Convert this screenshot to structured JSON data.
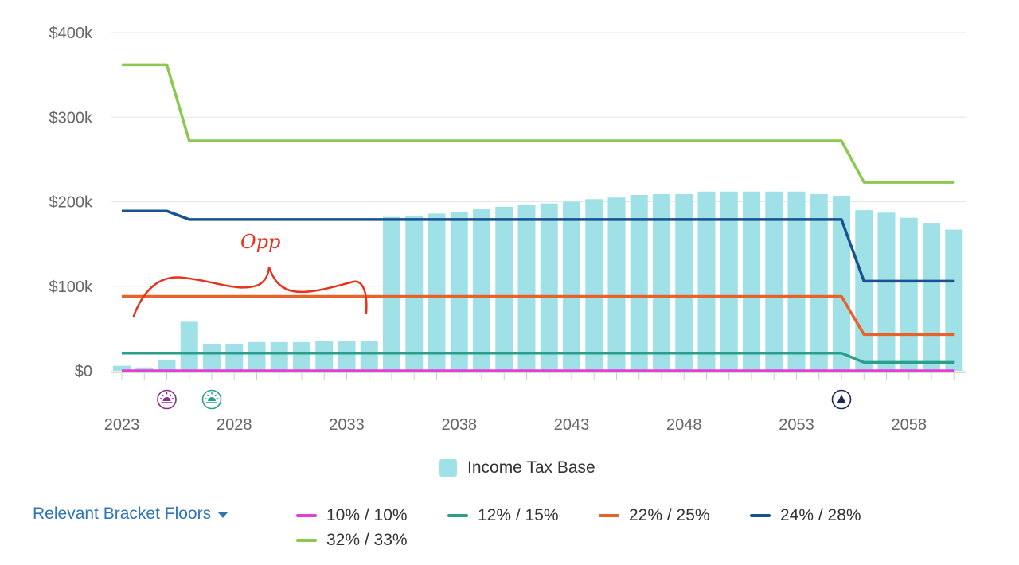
{
  "chart_data": {
    "type": "bar",
    "x_ticks": [
      2023,
      2028,
      2033,
      2038,
      2043,
      2048,
      2053,
      2058
    ],
    "y_ticks": [
      "$0",
      "$100k",
      "$200k",
      "$300k",
      "$400k"
    ],
    "ylim": [
      0,
      400000
    ],
    "xlim": [
      2023,
      2061
    ],
    "grid": true,
    "bar_series": {
      "name": "Income Tax Base",
      "color": "#9fe1e6",
      "years": [
        2023,
        2024,
        2025,
        2026,
        2027,
        2028,
        2029,
        2030,
        2031,
        2032,
        2033,
        2034,
        2035,
        2036,
        2037,
        2038,
        2039,
        2040,
        2041,
        2042,
        2043,
        2044,
        2045,
        2046,
        2047,
        2048,
        2049,
        2050,
        2051,
        2052,
        2053,
        2054,
        2055,
        2056,
        2057,
        2058,
        2059,
        2060
      ],
      "values": [
        6000,
        4000,
        13000,
        58000,
        32000,
        32000,
        34000,
        34000,
        34000,
        35000,
        35000,
        35000,
        182000,
        183000,
        186000,
        188000,
        191000,
        194000,
        196000,
        198000,
        200000,
        203000,
        205000,
        208000,
        209000,
        209000,
        212000,
        212000,
        212000,
        212000,
        212000,
        209000,
        207000,
        190000,
        187000,
        181000,
        175000,
        167000
      ]
    },
    "line_series": [
      {
        "name": "10% / 10%",
        "color": "#e23fd9",
        "points": [
          [
            2023,
            0
          ],
          [
            2060,
            0
          ]
        ]
      },
      {
        "name": "12% / 15%",
        "color": "#2aa08a",
        "points": [
          [
            2023,
            21000
          ],
          [
            2055,
            21000
          ],
          [
            2056,
            10000
          ],
          [
            2060,
            10000
          ]
        ]
      },
      {
        "name": "22% / 25%",
        "color": "#e8632a",
        "points": [
          [
            2023,
            88000
          ],
          [
            2055,
            88000
          ],
          [
            2056,
            43000
          ],
          [
            2060,
            43000
          ]
        ]
      },
      {
        "name": "24% / 28%",
        "color": "#17538f",
        "points": [
          [
            2023,
            189000
          ],
          [
            2025,
            189000
          ],
          [
            2026,
            179000
          ],
          [
            2055,
            179000
          ],
          [
            2056,
            106000
          ],
          [
            2060,
            106000
          ]
        ]
      },
      {
        "name": "32% / 33%",
        "color": "#8bc850",
        "points": [
          [
            2023,
            362000
          ],
          [
            2025,
            362000
          ],
          [
            2026,
            272000
          ],
          [
            2055,
            272000
          ],
          [
            2056,
            223000
          ],
          [
            2060,
            223000
          ]
        ]
      }
    ],
    "markers": [
      {
        "year": 2025,
        "icon": "sunrise-icon",
        "color": "#8a2c8a"
      },
      {
        "year": 2027,
        "icon": "sunrise-icon",
        "color": "#2aa08a"
      },
      {
        "year": 2055,
        "icon": "triangle-up-icon",
        "color": "#1a2a5a"
      }
    ],
    "annotation": {
      "text": "Opp",
      "color": "#e8321a"
    }
  },
  "legend": {
    "bar_label": "Income Tax Base"
  },
  "controls": {
    "bracket_floors_label": "Relevant Bracket Floors"
  }
}
